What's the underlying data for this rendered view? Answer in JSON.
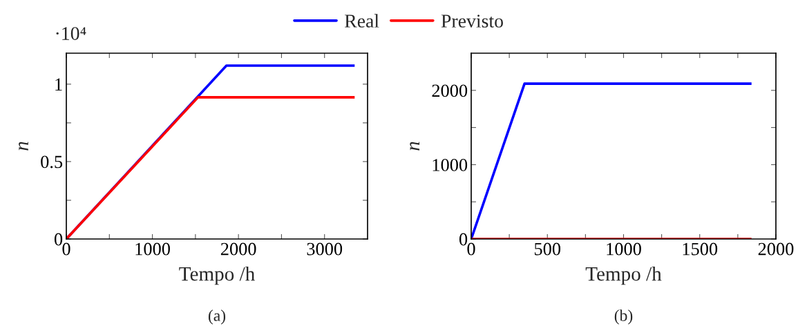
{
  "chart_data": [
    {
      "type": "line",
      "xlabel": "Tempo /h",
      "ylabel": "n",
      "legend": "top",
      "annotations": [
        "·10⁴",
        "(a)"
      ],
      "xlim": [
        0,
        3500
      ],
      "xticks": [
        0,
        {
          "value": 500,
          "label": null
        },
        1000,
        {
          "value": 1500,
          "label": null
        },
        2000,
        {
          "value": 2500,
          "label": null
        },
        3000
      ],
      "ylim": [
        0,
        1.2
      ],
      "yticks": [
        0,
        {
          "value": 0.25,
          "label": null
        },
        0.5,
        {
          "value": 0.75,
          "label": null
        },
        1
      ],
      "series": [
        {
          "name": "Real",
          "color": "#0000ff",
          "x": [
            0,
            1860,
            3350
          ],
          "values": [
            0,
            1.12,
            1.12
          ]
        },
        {
          "name": "Previsto",
          "color": "#ff0000",
          "x": [
            0,
            1530,
            3350
          ],
          "values": [
            0,
            0.915,
            0.915
          ]
        }
      ]
    },
    {
      "type": "line",
      "xlabel": "Tempo /h",
      "ylabel": "n",
      "annotations": [
        "(b)"
      ],
      "xlim": [
        0,
        2000
      ],
      "xticks": [
        0,
        {
          "value": 250,
          "label": null
        },
        500,
        {
          "value": 750,
          "label": null
        },
        1000,
        {
          "value": 1250,
          "label": null
        },
        1500,
        {
          "value": 1750,
          "label": null
        },
        2000
      ],
      "ylim": [
        0,
        2500
      ],
      "yticks": [
        0,
        {
          "value": 500,
          "label": null
        },
        1000,
        {
          "value": 1500,
          "label": null
        },
        2000
      ],
      "series": [
        {
          "color": "#0000ff",
          "x": [
            0,
            350,
            1840
          ],
          "values": [
            0,
            2090,
            2090
          ]
        },
        {
          "color": "#ff0000",
          "x": [
            0,
            1840
          ],
          "values": [
            0,
            0
          ]
        }
      ]
    }
  ]
}
